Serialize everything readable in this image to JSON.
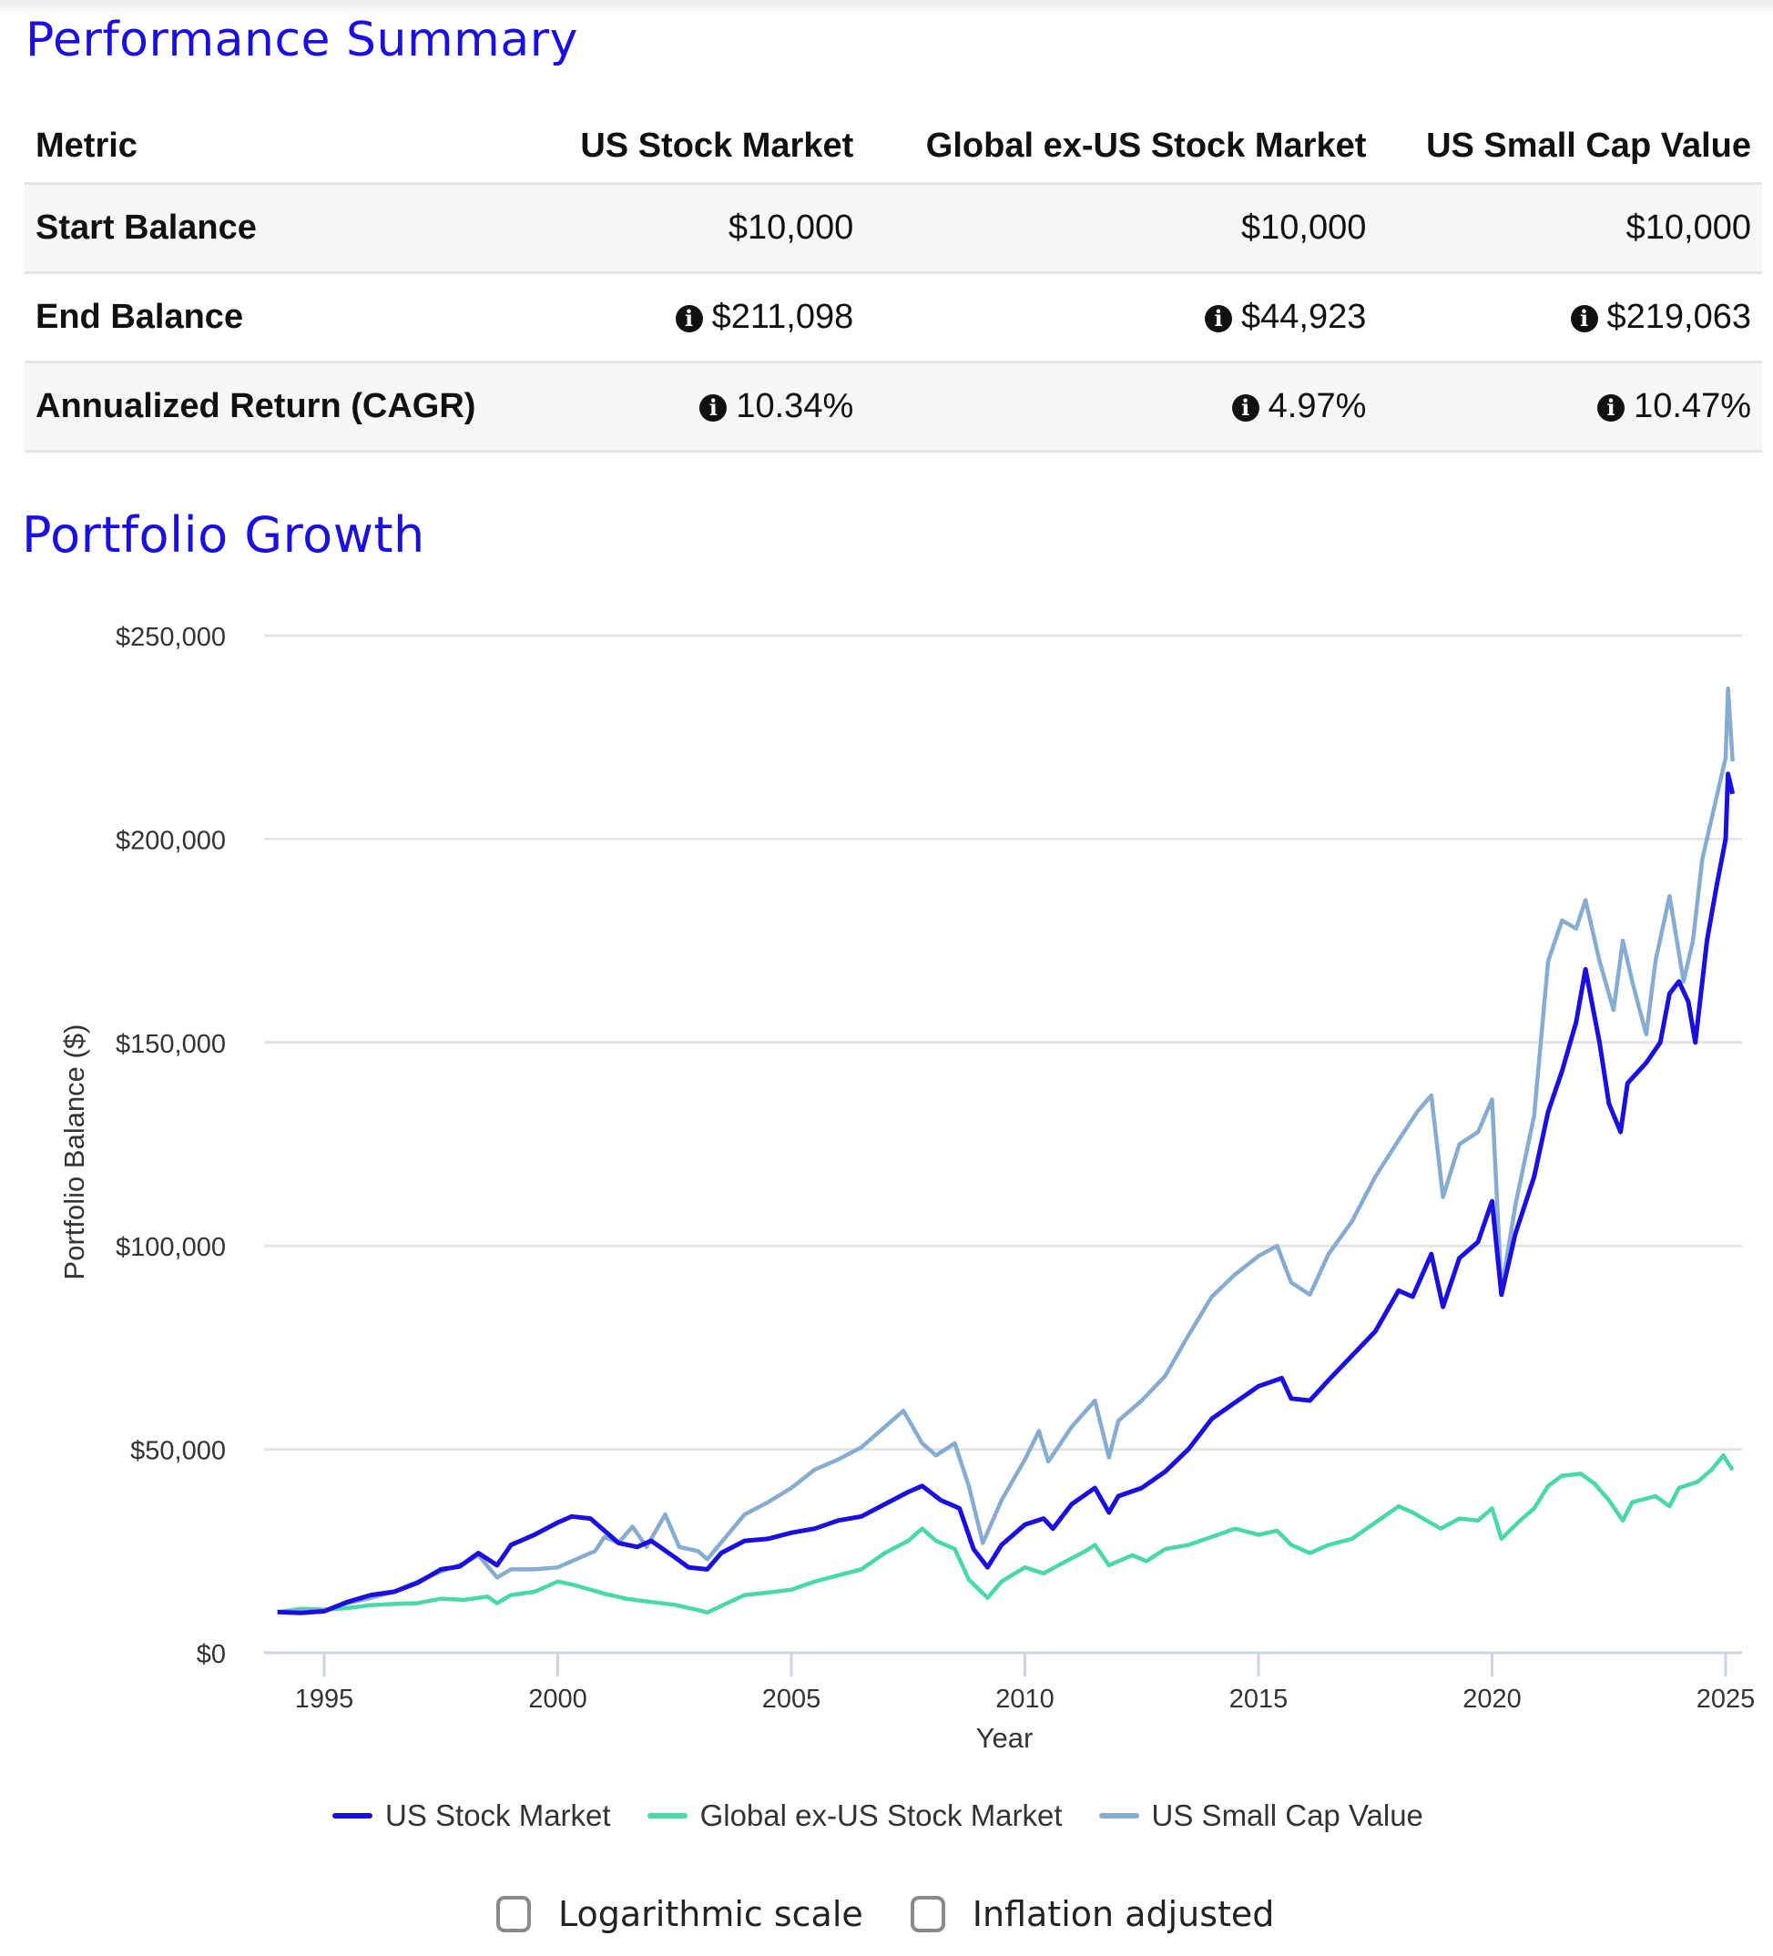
{
  "performance_summary": {
    "title": "Performance Summary",
    "columns": [
      "Metric",
      "US Stock Market",
      "Global ex-US Stock Market",
      "US Small Cap Value"
    ],
    "rows": [
      {
        "metric": "Start Balance",
        "values": [
          "$10,000",
          "$10,000",
          "$10,000"
        ],
        "info": false
      },
      {
        "metric": "End Balance",
        "values": [
          "$211,098",
          "$44,923",
          "$219,063"
        ],
        "info": true
      },
      {
        "metric": "Annualized Return (CAGR)",
        "values": [
          "10.34%",
          "4.97%",
          "10.47%"
        ],
        "info": true
      }
    ],
    "info_icon": "info-circle-icon"
  },
  "portfolio_growth": {
    "title": "Portfolio Growth",
    "options": [
      {
        "label": "Logarithmic scale",
        "checked": false
      },
      {
        "label": "Inflation adjusted",
        "checked": false
      }
    ]
  },
  "chart_data": {
    "type": "line",
    "title": "Portfolio Growth",
    "xlabel": "Year",
    "ylabel": "Portfolio Balance ($)",
    "xlim": [
      1994.0,
      2025.2
    ],
    "ylim": [
      0,
      250000
    ],
    "x_ticks": [
      1995,
      2000,
      2005,
      2010,
      2015,
      2020,
      2025
    ],
    "y_ticks": [
      0,
      50000,
      100000,
      150000,
      200000,
      250000
    ],
    "y_tick_labels": [
      "$0",
      "$50,000",
      "$100,000",
      "$150,000",
      "$200,000",
      "$250,000"
    ],
    "grid": true,
    "legend_position": "bottom",
    "series": [
      {
        "name": "US Stock Market",
        "color": "#1a0ee0",
        "points": [
          [
            1994.0,
            10000
          ],
          [
            1994.5,
            9800
          ],
          [
            1995.0,
            10200
          ],
          [
            1995.5,
            12500
          ],
          [
            1996.0,
            14200
          ],
          [
            1996.5,
            15000
          ],
          [
            1997.0,
            17200
          ],
          [
            1997.5,
            20500
          ],
          [
            1997.9,
            21200
          ],
          [
            1998.3,
            24500
          ],
          [
            1998.7,
            21500
          ],
          [
            1999.0,
            26500
          ],
          [
            1999.5,
            29000
          ],
          [
            2000.0,
            32000
          ],
          [
            2000.3,
            33500
          ],
          [
            2000.7,
            33000
          ],
          [
            2001.0,
            30000
          ],
          [
            2001.3,
            27000
          ],
          [
            2001.7,
            26000
          ],
          [
            2002.0,
            27500
          ],
          [
            2002.5,
            23500
          ],
          [
            2002.8,
            21000
          ],
          [
            2003.2,
            20500
          ],
          [
            2003.5,
            24500
          ],
          [
            2004.0,
            27500
          ],
          [
            2004.5,
            28000
          ],
          [
            2005.0,
            29500
          ],
          [
            2005.5,
            30500
          ],
          [
            2006.0,
            32500
          ],
          [
            2006.5,
            33500
          ],
          [
            2007.0,
            36500
          ],
          [
            2007.5,
            39500
          ],
          [
            2007.8,
            41000
          ],
          [
            2008.2,
            37500
          ],
          [
            2008.6,
            35500
          ],
          [
            2008.9,
            25500
          ],
          [
            2009.2,
            21000
          ],
          [
            2009.5,
            26500
          ],
          [
            2010.0,
            31500
          ],
          [
            2010.4,
            33000
          ],
          [
            2010.6,
            30500
          ],
          [
            2011.0,
            36500
          ],
          [
            2011.5,
            40500
          ],
          [
            2011.8,
            34500
          ],
          [
            2012.0,
            38500
          ],
          [
            2012.5,
            40500
          ],
          [
            2013.0,
            44500
          ],
          [
            2013.5,
            50000
          ],
          [
            2014.0,
            57500
          ],
          [
            2014.5,
            61500
          ],
          [
            2015.0,
            65500
          ],
          [
            2015.5,
            67500
          ],
          [
            2015.7,
            62500
          ],
          [
            2016.1,
            62000
          ],
          [
            2016.5,
            67000
          ],
          [
            2017.0,
            73000
          ],
          [
            2017.5,
            79000
          ],
          [
            2018.0,
            89000
          ],
          [
            2018.3,
            87500
          ],
          [
            2018.7,
            98000
          ],
          [
            2018.95,
            85000
          ],
          [
            2019.3,
            97000
          ],
          [
            2019.7,
            101000
          ],
          [
            2020.0,
            111000
          ],
          [
            2020.2,
            88000
          ],
          [
            2020.5,
            103000
          ],
          [
            2020.9,
            117000
          ],
          [
            2021.2,
            133000
          ],
          [
            2021.5,
            143000
          ],
          [
            2021.8,
            155000
          ],
          [
            2022.0,
            168000
          ],
          [
            2022.3,
            150000
          ],
          [
            2022.5,
            135000
          ],
          [
            2022.75,
            128000
          ],
          [
            2022.9,
            140000
          ],
          [
            2023.3,
            145000
          ],
          [
            2023.6,
            150000
          ],
          [
            2023.8,
            162000
          ],
          [
            2024.0,
            165000
          ],
          [
            2024.2,
            160000
          ],
          [
            2024.35,
            150000
          ],
          [
            2024.6,
            175000
          ],
          [
            2024.8,
            188000
          ],
          [
            2025.0,
            200000
          ],
          [
            2025.05,
            216000
          ],
          [
            2025.15,
            211098
          ]
        ]
      },
      {
        "name": "Global ex-US Stock Market",
        "color": "#48d9a4",
        "points": [
          [
            1994.0,
            10000
          ],
          [
            1994.5,
            10800
          ],
          [
            1995.0,
            10600
          ],
          [
            1995.5,
            11000
          ],
          [
            1996.0,
            11700
          ],
          [
            1996.5,
            12000
          ],
          [
            1997.0,
            12200
          ],
          [
            1997.5,
            13300
          ],
          [
            1998.0,
            13000
          ],
          [
            1998.5,
            13800
          ],
          [
            1998.7,
            12200
          ],
          [
            1999.0,
            14200
          ],
          [
            1999.5,
            15000
          ],
          [
            2000.0,
            17500
          ],
          [
            2000.3,
            16800
          ],
          [
            2000.7,
            15500
          ],
          [
            2001.0,
            14500
          ],
          [
            2001.5,
            13200
          ],
          [
            2002.0,
            12500
          ],
          [
            2002.5,
            11800
          ],
          [
            2003.0,
            10500
          ],
          [
            2003.2,
            9900
          ],
          [
            2003.5,
            11500
          ],
          [
            2004.0,
            14200
          ],
          [
            2004.5,
            14800
          ],
          [
            2005.0,
            15500
          ],
          [
            2005.5,
            17500
          ],
          [
            2006.0,
            19000
          ],
          [
            2006.5,
            20500
          ],
          [
            2007.0,
            24500
          ],
          [
            2007.5,
            27500
          ],
          [
            2007.8,
            30500
          ],
          [
            2008.1,
            27500
          ],
          [
            2008.5,
            25500
          ],
          [
            2008.8,
            18000
          ],
          [
            2009.2,
            13500
          ],
          [
            2009.5,
            17500
          ],
          [
            2010.0,
            21000
          ],
          [
            2010.4,
            19500
          ],
          [
            2010.8,
            22000
          ],
          [
            2011.3,
            25000
          ],
          [
            2011.5,
            26500
          ],
          [
            2011.8,
            21500
          ],
          [
            2012.3,
            24000
          ],
          [
            2012.6,
            22500
          ],
          [
            2013.0,
            25500
          ],
          [
            2013.5,
            26500
          ],
          [
            2014.0,
            28500
          ],
          [
            2014.5,
            30500
          ],
          [
            2015.0,
            29000
          ],
          [
            2015.4,
            30000
          ],
          [
            2015.7,
            26500
          ],
          [
            2016.1,
            24500
          ],
          [
            2016.5,
            26500
          ],
          [
            2017.0,
            28000
          ],
          [
            2017.5,
            32000
          ],
          [
            2018.0,
            36000
          ],
          [
            2018.3,
            34500
          ],
          [
            2018.9,
            30500
          ],
          [
            2019.3,
            33000
          ],
          [
            2019.7,
            32500
          ],
          [
            2020.0,
            35500
          ],
          [
            2020.2,
            28000
          ],
          [
            2020.6,
            32500
          ],
          [
            2020.9,
            35500
          ],
          [
            2021.2,
            41000
          ],
          [
            2021.5,
            43500
          ],
          [
            2021.9,
            44000
          ],
          [
            2022.2,
            41500
          ],
          [
            2022.5,
            37500
          ],
          [
            2022.8,
            32500
          ],
          [
            2023.0,
            37000
          ],
          [
            2023.5,
            38500
          ],
          [
            2023.8,
            36000
          ],
          [
            2024.0,
            40500
          ],
          [
            2024.4,
            42000
          ],
          [
            2024.7,
            45000
          ],
          [
            2024.95,
            48500
          ],
          [
            2025.15,
            44923
          ]
        ]
      },
      {
        "name": "US Small Cap Value",
        "color": "#86acd1",
        "points": [
          [
            1994.0,
            10000
          ],
          [
            1994.5,
            10300
          ],
          [
            1995.0,
            10400
          ],
          [
            1995.5,
            12200
          ],
          [
            1996.0,
            13500
          ],
          [
            1996.5,
            15000
          ],
          [
            1997.0,
            17500
          ],
          [
            1997.5,
            20000
          ],
          [
            1998.0,
            22000
          ],
          [
            1998.3,
            24000
          ],
          [
            1998.7,
            18500
          ],
          [
            1999.0,
            20500
          ],
          [
            1999.5,
            20500
          ],
          [
            2000.0,
            21000
          ],
          [
            2000.5,
            23500
          ],
          [
            2000.8,
            25000
          ],
          [
            2001.0,
            28500
          ],
          [
            2001.3,
            27000
          ],
          [
            2001.6,
            31000
          ],
          [
            2001.9,
            26000
          ],
          [
            2002.3,
            34000
          ],
          [
            2002.6,
            26000
          ],
          [
            2003.0,
            25000
          ],
          [
            2003.2,
            23000
          ],
          [
            2003.6,
            28500
          ],
          [
            2004.0,
            34000
          ],
          [
            2004.5,
            37000
          ],
          [
            2005.0,
            40500
          ],
          [
            2005.5,
            45000
          ],
          [
            2006.0,
            47500
          ],
          [
            2006.5,
            50500
          ],
          [
            2007.0,
            55500
          ],
          [
            2007.4,
            59500
          ],
          [
            2007.8,
            51500
          ],
          [
            2008.1,
            48500
          ],
          [
            2008.5,
            51500
          ],
          [
            2008.8,
            41000
          ],
          [
            2009.1,
            27000
          ],
          [
            2009.5,
            37500
          ],
          [
            2010.0,
            47500
          ],
          [
            2010.3,
            54500
          ],
          [
            2010.5,
            47000
          ],
          [
            2011.0,
            55500
          ],
          [
            2011.5,
            62000
          ],
          [
            2011.8,
            48000
          ],
          [
            2012.0,
            57000
          ],
          [
            2012.5,
            62000
          ],
          [
            2013.0,
            68000
          ],
          [
            2013.5,
            78000
          ],
          [
            2014.0,
            87500
          ],
          [
            2014.5,
            93000
          ],
          [
            2015.0,
            97500
          ],
          [
            2015.4,
            100000
          ],
          [
            2015.7,
            91000
          ],
          [
            2016.1,
            88000
          ],
          [
            2016.5,
            98000
          ],
          [
            2017.0,
            106000
          ],
          [
            2017.5,
            117000
          ],
          [
            2018.0,
            126000
          ],
          [
            2018.4,
            133000
          ],
          [
            2018.7,
            137000
          ],
          [
            2018.95,
            112000
          ],
          [
            2019.3,
            125000
          ],
          [
            2019.7,
            128000
          ],
          [
            2020.0,
            136000
          ],
          [
            2020.2,
            89000
          ],
          [
            2020.5,
            110000
          ],
          [
            2020.9,
            132000
          ],
          [
            2021.2,
            170000
          ],
          [
            2021.5,
            180000
          ],
          [
            2021.8,
            178000
          ],
          [
            2022.0,
            185000
          ],
          [
            2022.3,
            170000
          ],
          [
            2022.6,
            158000
          ],
          [
            2022.8,
            175000
          ],
          [
            2023.0,
            165000
          ],
          [
            2023.3,
            152000
          ],
          [
            2023.5,
            170000
          ],
          [
            2023.8,
            186000
          ],
          [
            2024.1,
            165000
          ],
          [
            2024.3,
            175000
          ],
          [
            2024.5,
            195000
          ],
          [
            2024.8,
            210000
          ],
          [
            2025.0,
            220000
          ],
          [
            2025.05,
            237000
          ],
          [
            2025.15,
            219063
          ]
        ]
      }
    ]
  }
}
